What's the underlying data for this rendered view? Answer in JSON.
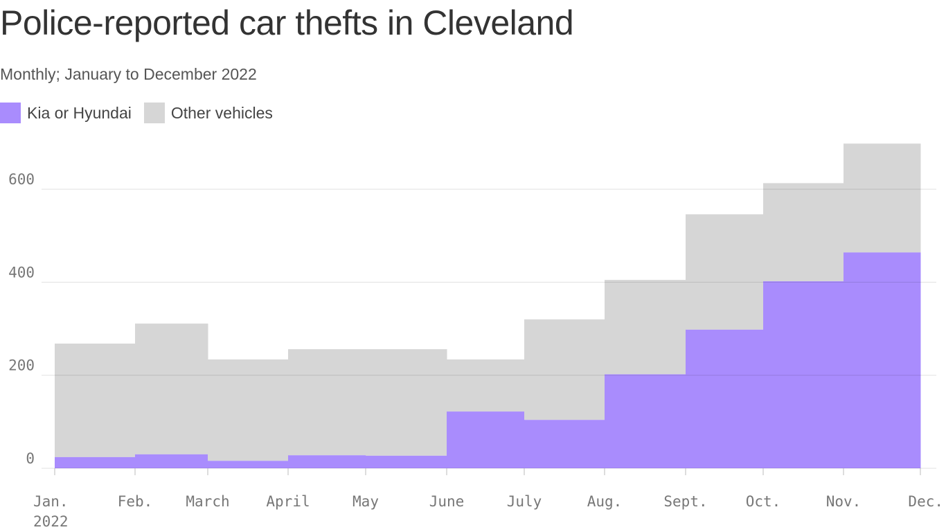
{
  "chart_data": {
    "type": "area",
    "stacked": true,
    "step": true,
    "title": "Police-reported car thefts in Cleveland",
    "subtitle": "Monthly; January to December 2022",
    "categories": [
      "Jan.",
      "Feb.",
      "March",
      "April",
      "May",
      "June",
      "July",
      "Aug.",
      "Sept.",
      "Oct.",
      "Nov."
    ],
    "x_tick_labels": [
      "Jan.",
      "Feb.",
      "March",
      "April",
      "May",
      "June",
      "July",
      "Aug.",
      "Sept.",
      "Oct.",
      "Nov.",
      "Dec."
    ],
    "x_year_label": "2022",
    "series": [
      {
        "name": "Kia or Hyundai",
        "color": "#a98cfd",
        "values": [
          24,
          30,
          16,
          28,
          27,
          122,
          104,
          202,
          298,
          402,
          464
        ]
      },
      {
        "name": "Other vehicles",
        "color": "#d6d6d6",
        "values": [
          244,
          281,
          218,
          228,
          229,
          112,
          216,
          203,
          248,
          211,
          234
        ]
      }
    ],
    "y_ticks": [
      0,
      200,
      400,
      600
    ],
    "ylim": [
      0,
      700
    ],
    "grid": true,
    "legend": "top-left"
  }
}
